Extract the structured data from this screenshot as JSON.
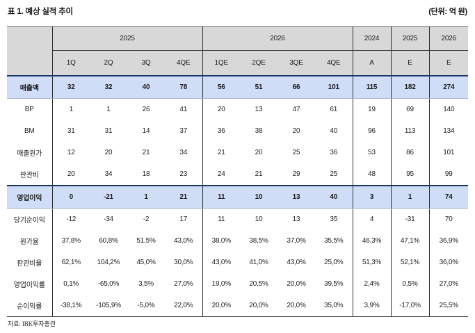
{
  "title": "표 1. 예상 실적 추이",
  "unit": "(단위: 억 원)",
  "source": "자료: IBK투자증권",
  "colors": {
    "header_bg": "#d8d8d8",
    "highlight_bg": "#cfddf6",
    "highlight_border": "#1c3767",
    "grid_line": "#2f2f2f"
  },
  "table": {
    "col_groups": [
      {
        "label": "2025",
        "span": 4
      },
      {
        "label": "2026",
        "span": 4
      },
      {
        "label": "2024",
        "span": 1
      },
      {
        "label": "2025",
        "span": 1
      },
      {
        "label": "2026",
        "span": 1
      }
    ],
    "sub_headers": [
      "1Q",
      "2Q",
      "3Q",
      "4QE",
      "1QE",
      "2QE",
      "3QE",
      "4QE",
      "A",
      "E",
      "E"
    ],
    "rows": [
      {
        "label": "매출액",
        "highlight": true,
        "values": [
          "32",
          "32",
          "40",
          "78",
          "56",
          "51",
          "66",
          "101",
          "115",
          "182",
          "274"
        ]
      },
      {
        "label": "BP",
        "highlight": false,
        "values": [
          "1",
          "1",
          "26",
          "41",
          "20",
          "13",
          "47",
          "61",
          "19",
          "69",
          "140"
        ]
      },
      {
        "label": "BM",
        "highlight": false,
        "values": [
          "31",
          "31",
          "14",
          "37",
          "36",
          "38",
          "20",
          "40",
          "96",
          "113",
          "134"
        ]
      },
      {
        "label": "매출원가",
        "highlight": false,
        "values": [
          "12",
          "20",
          "21",
          "34",
          "21",
          "20",
          "25",
          "36",
          "53",
          "86",
          "101"
        ]
      },
      {
        "label": "판관비",
        "highlight": false,
        "values": [
          "20",
          "34",
          "18",
          "23",
          "24",
          "21",
          "29",
          "25",
          "48",
          "95",
          "99"
        ]
      },
      {
        "label": "영업이익",
        "highlight": true,
        "values": [
          "0",
          "-21",
          "1",
          "21",
          "11",
          "10",
          "13",
          "40",
          "3",
          "1",
          "74"
        ]
      },
      {
        "label": "당기순이익",
        "highlight": false,
        "values": [
          "-12",
          "-34",
          "-2",
          "17",
          "11",
          "10",
          "13",
          "35",
          "4",
          "-31",
          "70"
        ]
      },
      {
        "label": "원가율",
        "highlight": false,
        "values": [
          "37,8%",
          "60,8%",
          "51,5%",
          "43,0%",
          "38,0%",
          "38,5%",
          "37,0%",
          "35,5%",
          "46,3%",
          "47,1%",
          "36,9%"
        ]
      },
      {
        "label": "판관비율",
        "highlight": false,
        "values": [
          "62,1%",
          "104,2%",
          "45,0%",
          "30,0%",
          "43,0%",
          "41,0%",
          "43,0%",
          "25,0%",
          "51,3%",
          "52,1%",
          "36,0%"
        ]
      },
      {
        "label": "영업이익률",
        "highlight": false,
        "values": [
          "0,1%",
          "-65,0%",
          "3,5%",
          "27,0%",
          "19,0%",
          "20,5%",
          "20,0%",
          "39,5%",
          "2,4%",
          "0,5%",
          "27,0%"
        ]
      },
      {
        "label": "순이익률",
        "highlight": false,
        "values": [
          "-38,1%",
          "-105,9%",
          "-5,0%",
          "22,0%",
          "20,0%",
          "20,0%",
          "20,0%",
          "35,0%",
          "3,9%",
          "-17,0%",
          "25,5%"
        ]
      }
    ]
  }
}
